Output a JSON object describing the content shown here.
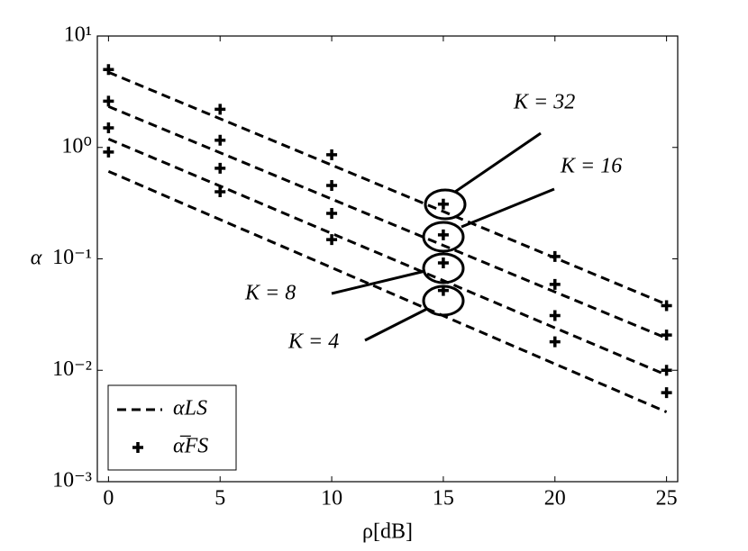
{
  "chart_data": {
    "type": "line",
    "x_label": "ρ[dB]",
    "y_label": "α",
    "x": [
      0,
      5,
      10,
      15,
      20,
      25
    ],
    "log_y": true,
    "xlim": [
      -0.5,
      25.5
    ],
    "ylim": [
      0.001,
      10
    ],
    "xticks": [
      0,
      5,
      10,
      15,
      20,
      25
    ],
    "yticks": [
      {
        "value": 0.001,
        "label": "10⁻³"
      },
      {
        "value": 0.01,
        "label": "10⁻²"
      },
      {
        "value": 0.1,
        "label": "10⁻¹"
      },
      {
        "value": 1,
        "label": "10⁰"
      },
      {
        "value": 10,
        "label": "10¹"
      }
    ],
    "color": "#000000",
    "legend": {
      "ls": "αLS",
      "fs": "α̅FS",
      "corner": "lower left"
    },
    "series": [
      {
        "name": "K = 32",
        "ls": [
          4.73,
          1.81,
          0.695,
          0.266,
          0.102,
          0.039
        ],
        "fs": [
          5.0,
          2.2,
          0.86,
          0.31,
          0.105,
          0.038
        ]
      },
      {
        "name": "K = 16",
        "ls": [
          2.33,
          0.897,
          0.344,
          0.132,
          0.0505,
          0.0194
        ],
        "fs": [
          2.6,
          1.16,
          0.456,
          0.164,
          0.059,
          0.0207
        ]
      },
      {
        "name": "K = 8",
        "ls": [
          1.19,
          0.45,
          0.169,
          0.0638,
          0.024,
          0.00906
        ],
        "fs": [
          1.5,
          0.65,
          0.256,
          0.092,
          0.031,
          0.01
        ]
      },
      {
        "name": "K = 4",
        "ls": [
          0.61,
          0.225,
          0.0834,
          0.0308,
          0.0114,
          0.00422
        ],
        "fs": [
          0.91,
          0.4,
          0.149,
          0.052,
          0.018,
          0.0063
        ]
      }
    ]
  }
}
